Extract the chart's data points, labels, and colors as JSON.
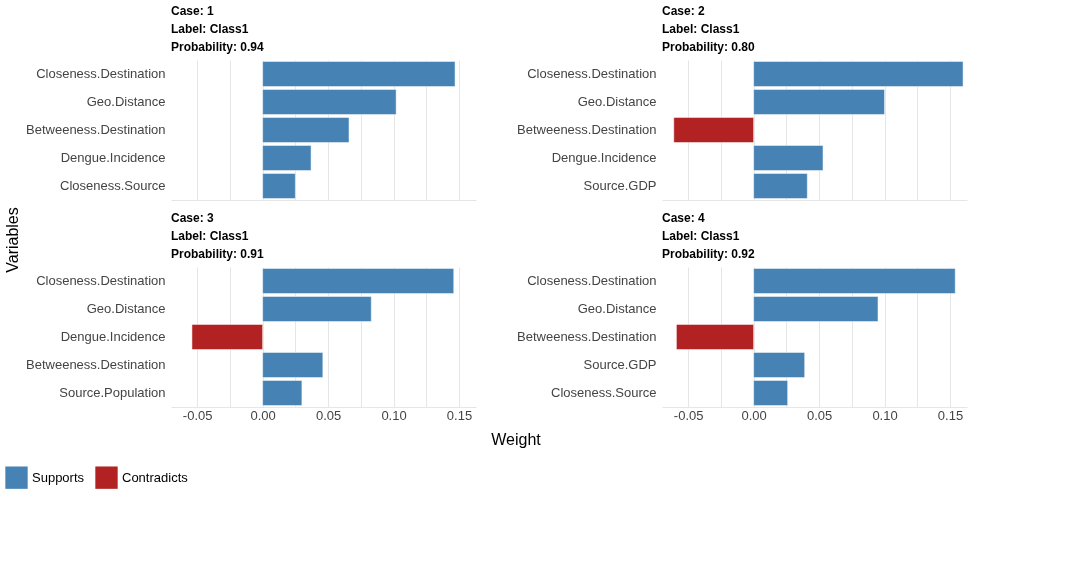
{
  "chart_data": [
    {
      "type": "bar",
      "orientation": "horizontal",
      "title": "Case: 1\nLabel: Class1\nProbability: 0.94",
      "ylabel": "Variables",
      "legend": "bottom",
      "grid": "x",
      "tick_labels": "y",
      "categories": [
        "Closeness.Destination",
        "Geo.Distance",
        "Betweeness.Destination",
        "Dengue.Incidence",
        "Closeness.Source"
      ],
      "series": [
        {
          "name": "Supports",
          "color": "#4682b4",
          "values": [
            0.147,
            0.102,
            0.066,
            0.037,
            0.025
          ]
        },
        {
          "name": "Contradicts",
          "color": "#b22222",
          "values": [
            null,
            null,
            null,
            null,
            null
          ]
        }
      ],
      "xlim": [
        -0.07,
        0.163
      ],
      "xticks": [
        -0.05,
        {
          "value": -0.025,
          "label": null
        },
        0.0,
        {
          "value": 0.025,
          "label": null
        },
        0.05,
        {
          "value": 0.075,
          "label": null
        },
        0.1,
        {
          "value": 0.125,
          "label": null
        },
        0.15
      ]
    },
    {
      "type": "bar",
      "orientation": "horizontal",
      "title": "Case: 2\nLabel: Class1\nProbability: 0.80",
      "grid": "x",
      "tick_labels": "y",
      "categories": [
        "Closeness.Destination",
        "Geo.Distance",
        "Betweeness.Destination",
        "Dengue.Incidence",
        "Source.GDP"
      ],
      "series": [
        {
          "color": "#4682b4",
          "values": [
            0.16,
            0.1,
            null,
            0.053,
            0.041
          ]
        },
        {
          "color": "#b22222",
          "values": [
            null,
            null,
            -0.061,
            null,
            null
          ]
        }
      ],
      "xlim": [
        -0.07,
        0.163
      ],
      "xticks": [
        -0.05,
        {
          "value": -0.025,
          "label": null
        },
        0.0,
        {
          "value": 0.025,
          "label": null
        },
        0.05,
        {
          "value": 0.075,
          "label": null
        },
        0.1,
        {
          "value": 0.125,
          "label": null
        },
        0.15
      ]
    },
    {
      "type": "bar",
      "orientation": "horizontal",
      "title": "Case: 3\nLabel: Class1\nProbability: 0.91",
      "xlabel": "Weight",
      "grid": "x",
      "categories": [
        "Closeness.Destination",
        "Geo.Distance",
        "Dengue.Incidence",
        "Betweeness.Destination",
        "Source.Population"
      ],
      "series": [
        {
          "color": "#4682b4",
          "values": [
            0.146,
            0.083,
            null,
            0.046,
            0.03
          ]
        },
        {
          "color": "#b22222",
          "values": [
            null,
            null,
            -0.054,
            null,
            null
          ]
        }
      ],
      "xlim": [
        -0.07,
        0.163
      ],
      "xticks": [
        {
          "value": -0.05,
          "label": "-0.05"
        },
        {
          "value": -0.025,
          "label": null
        },
        {
          "value": 0,
          "label": "0.00"
        },
        {
          "value": 0.025,
          "label": null
        },
        {
          "value": 0.05,
          "label": "0.05"
        },
        {
          "value": 0.075,
          "label": null
        },
        {
          "value": 0.1,
          "label": "0.10"
        },
        {
          "value": 0.125,
          "label": null
        },
        {
          "value": 0.15,
          "label": "0.15"
        }
      ]
    },
    {
      "type": "bar",
      "orientation": "horizontal",
      "title": "Case: 4\nLabel: Class1\nProbability: 0.92",
      "grid": "x",
      "categories": [
        "Closeness.Destination",
        "Geo.Distance",
        "Betweeness.Destination",
        "Source.GDP",
        "Closeness.Source"
      ],
      "series": [
        {
          "color": "#4682b4",
          "values": [
            0.154,
            0.095,
            null,
            0.039,
            0.026
          ]
        },
        {
          "color": "#b22222",
          "values": [
            null,
            null,
            -0.059,
            null,
            null
          ]
        }
      ],
      "xlim": [
        -0.07,
        0.163
      ],
      "xticks": [
        {
          "value": -0.05,
          "label": "-0.05"
        },
        {
          "value": -0.025,
          "label": null
        },
        {
          "value": 0,
          "label": "0.00"
        },
        {
          "value": 0.025,
          "label": null
        },
        {
          "value": 0.05,
          "label": "0.05"
        },
        {
          "value": 0.075,
          "label": null
        },
        {
          "value": 0.1,
          "label": "0.10"
        },
        {
          "value": 0.125,
          "label": null
        },
        {
          "value": 0.15,
          "label": "0.15"
        }
      ]
    }
  ]
}
